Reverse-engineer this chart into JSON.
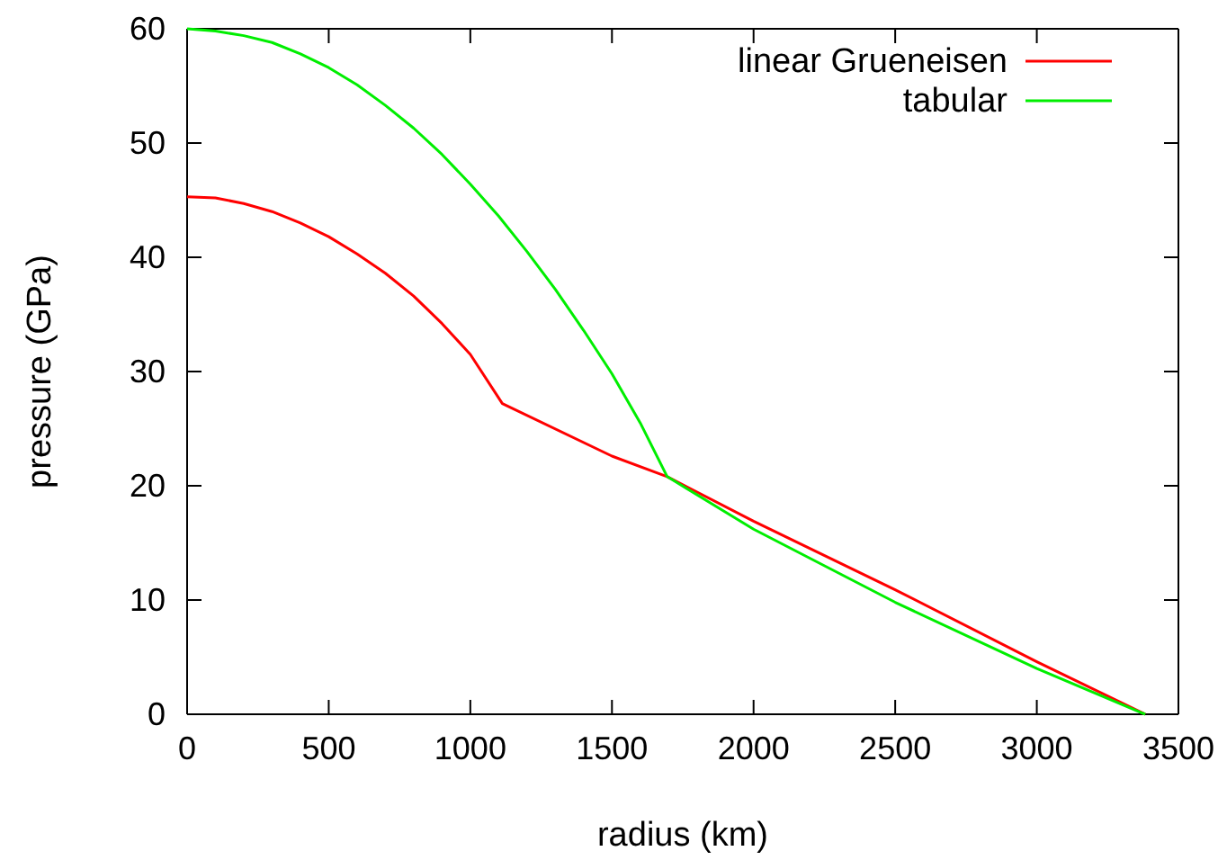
{
  "chart_data": {
    "type": "line",
    "xlabel": "radius (km)",
    "ylabel": "pressure (GPa)",
    "xlim": [
      0,
      3500
    ],
    "xticks": [
      0,
      500,
      1000,
      1500,
      2000,
      2500,
      3000,
      3500
    ],
    "ylim": [
      0,
      60
    ],
    "yticks": [
      0,
      10,
      20,
      30,
      40,
      50,
      60
    ],
    "grid": false,
    "legend": "top right",
    "marker": "none",
    "line_style": "solid",
    "series": [
      {
        "name": "linear Grueneisen",
        "color": "#ff0000",
        "x": [
          0,
          100,
          200,
          300,
          400,
          500,
          600,
          700,
          800,
          900,
          1000,
          1113,
          1500,
          1695,
          2000,
          2500,
          3000,
          3383
        ],
        "values": [
          45.3,
          45.2,
          44.7,
          44.0,
          43.0,
          41.8,
          40.3,
          38.6,
          36.6,
          34.2,
          31.5,
          27.2,
          22.6,
          20.8,
          16.9,
          10.9,
          4.6,
          0
        ]
      },
      {
        "name": "tabular",
        "color": "#00ee00",
        "x": [
          0,
          100,
          200,
          300,
          400,
          500,
          600,
          700,
          800,
          900,
          1000,
          1100,
          1200,
          1300,
          1400,
          1500,
          1600,
          1695,
          2000,
          2500,
          3000,
          3383
        ],
        "values": [
          60,
          59.8,
          59.4,
          58.8,
          57.8,
          56.6,
          55.1,
          53.3,
          51.3,
          49.0,
          46.4,
          43.6,
          40.5,
          37.2,
          33.6,
          29.8,
          25.5,
          20.8,
          16.2,
          9.8,
          4.0,
          0
        ]
      }
    ]
  }
}
